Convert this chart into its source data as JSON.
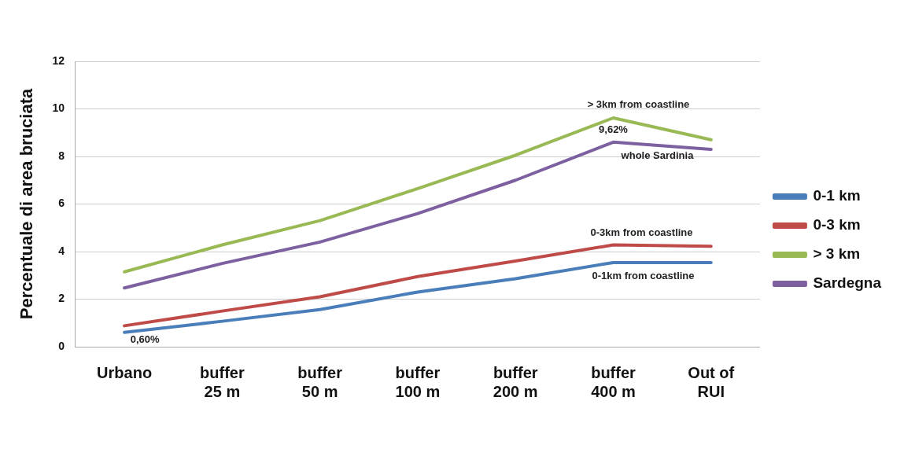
{
  "chart_data": {
    "type": "line",
    "ylabel": "Percentuale di area bruciata",
    "categories": [
      "Urbano",
      "buffer\n25 m",
      "buffer\n50 m",
      "buffer\n100 m",
      "buffer\n200 m",
      "buffer\n400 m",
      "Out of\nRUI"
    ],
    "series": [
      {
        "name": "0-1 km",
        "color": "#4a7ebb",
        "values": [
          0.6,
          1.07,
          1.56,
          2.3,
          2.86,
          3.54,
          3.54
        ]
      },
      {
        "name": "0-3 km",
        "color": "#be4b48",
        "values": [
          0.88,
          1.5,
          2.1,
          2.95,
          3.6,
          4.28,
          4.22
        ]
      },
      {
        "name": "> 3 km",
        "color": "#98b954",
        "values": [
          3.15,
          4.28,
          5.3,
          6.65,
          8.05,
          9.62,
          8.7
        ]
      },
      {
        "name": "Sardegna",
        "color": "#7d60a0",
        "values": [
          2.47,
          3.5,
          4.4,
          5.6,
          7.0,
          8.6,
          8.3
        ]
      }
    ],
    "ylim": [
      0,
      12
    ],
    "yticks": [
      0,
      2,
      4,
      6,
      8,
      10,
      12
    ],
    "grid": "y",
    "legend": "right",
    "marker": "none",
    "line_style": "solid",
    "annotations": [
      {
        "text": "> 3km from coastline",
        "x": "buffer\n400 m",
        "y": 9.62
      },
      {
        "text": "9,62%",
        "x": "buffer\n400 m",
        "y": 9.62
      },
      {
        "text": "whole Sardinia",
        "x": "buffer\n400 m",
        "y": 8.6
      },
      {
        "text": "0-3km from coastline",
        "x": "buffer\n400 m",
        "y": 4.28
      },
      {
        "text": "0-1km from coastline",
        "x": "buffer\n400 m",
        "y": 3.54
      },
      {
        "text": "0,60%",
        "x": "Urbano",
        "y": 0.6
      }
    ]
  }
}
